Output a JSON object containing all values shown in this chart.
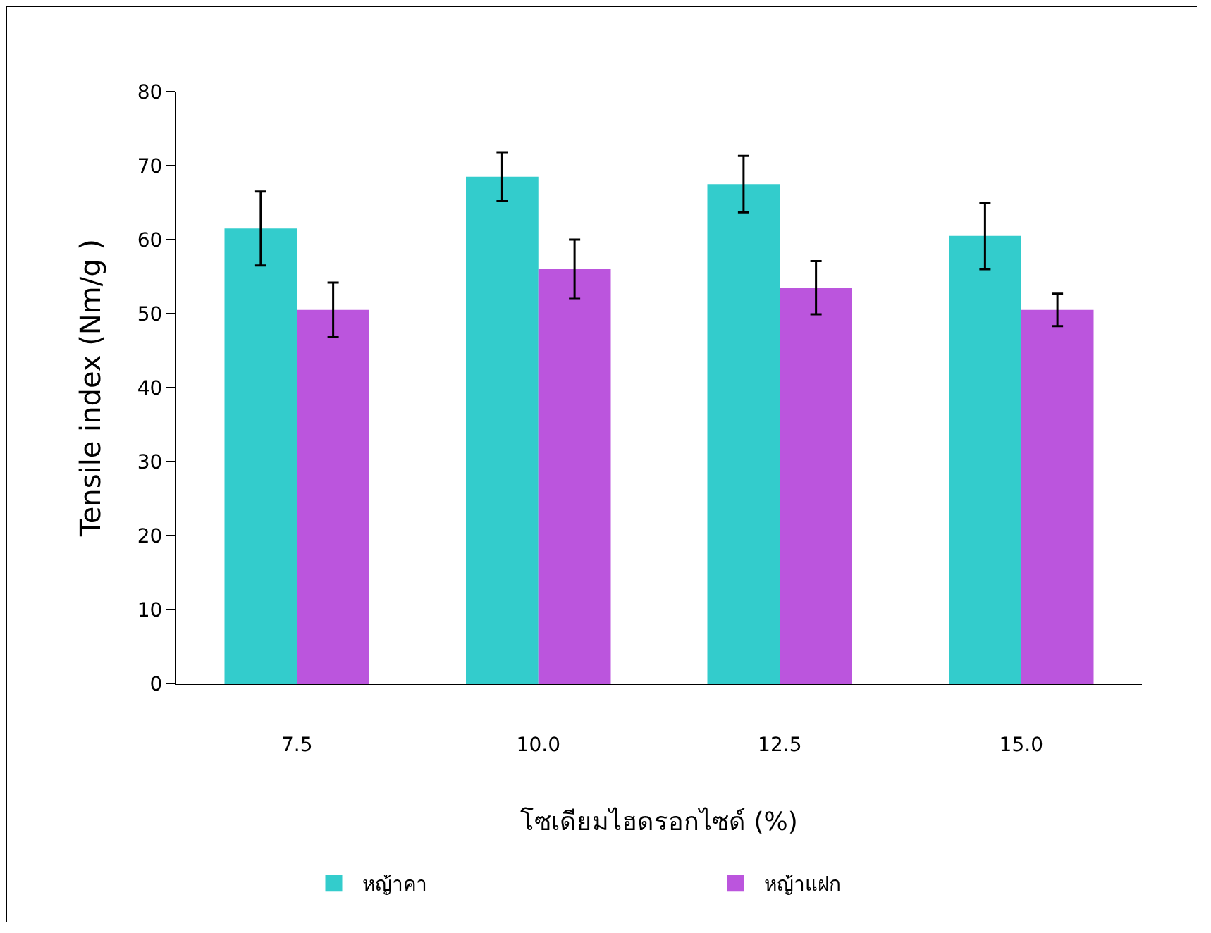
{
  "chart_data": {
    "type": "bar",
    "xlabel": "โซเดียมไฮดรอกไซด์ (%)",
    "ylabel": "Tensile index (Nm/g )",
    "categories": [
      "7.5",
      "10.0",
      "12.5",
      "15.0"
    ],
    "series": [
      {
        "name": "หญ้าคา",
        "color": "#33cccc",
        "values": [
          61.5,
          68.5,
          67.5,
          60.5
        ],
        "errors": [
          5,
          3.3,
          3.8,
          4.5
        ]
      },
      {
        "name": "หญ้าแฝก",
        "color": "#bb55dd",
        "values": [
          50.5,
          56,
          53.5,
          50.5
        ],
        "errors": [
          3.7,
          4,
          3.6,
          2.2
        ]
      }
    ],
    "ylim": [
      0,
      80
    ],
    "yticks": [
      0,
      10,
      20,
      30,
      40,
      50,
      60,
      70,
      80
    ],
    "grid": false,
    "legend": "bottom"
  }
}
